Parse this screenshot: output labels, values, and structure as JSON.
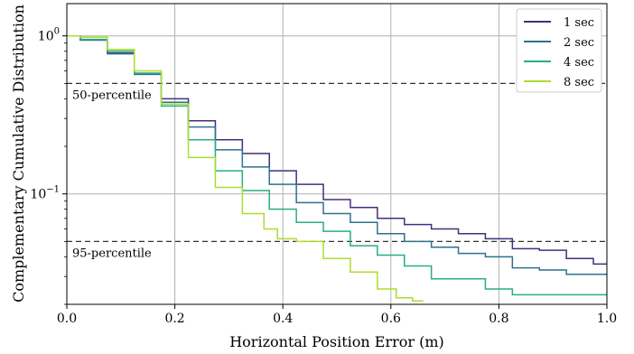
{
  "chart_data": {
    "type": "line",
    "title": "",
    "xlabel": "Horizontal Position Error (m)",
    "ylabel": "Complementary Cumulative Distribution",
    "xlim": [
      0.0,
      1.0
    ],
    "ylim": [
      0.02,
      1.6
    ],
    "y_scale": "log",
    "grid": true,
    "legend_position": "top-right",
    "x_ticks": [
      0.0,
      0.2,
      0.4,
      0.6,
      0.8,
      1.0
    ],
    "x_tick_labels": [
      "0.0",
      "0.2",
      "0.4",
      "0.6",
      "0.8",
      "1.0"
    ],
    "y_ticks": [
      1.0,
      0.1
    ],
    "y_tick_labels": [
      {
        "base": "10",
        "exp": "0"
      },
      {
        "base": "10",
        "exp": "−1"
      }
    ],
    "reference_lines": [
      {
        "y": 0.5,
        "label": "50-percentile"
      },
      {
        "y": 0.05,
        "label": "95-percentile"
      }
    ],
    "series": [
      {
        "name": "1 sec",
        "color": "#472d7b",
        "x": [
          0.0,
          0.05,
          0.1,
          0.15,
          0.2,
          0.25,
          0.3,
          0.35,
          0.4,
          0.45,
          0.5,
          0.55,
          0.6,
          0.65,
          0.7,
          0.75,
          0.8,
          0.85,
          0.9,
          0.95,
          1.0
        ],
        "y": [
          1.0,
          0.94,
          0.78,
          0.58,
          0.4,
          0.29,
          0.22,
          0.18,
          0.14,
          0.115,
          0.092,
          0.082,
          0.07,
          0.064,
          0.06,
          0.056,
          0.052,
          0.045,
          0.044,
          0.039,
          0.036
        ]
      },
      {
        "name": "2 sec",
        "color": "#2c728e",
        "x": [
          0.0,
          0.05,
          0.1,
          0.15,
          0.2,
          0.25,
          0.3,
          0.35,
          0.4,
          0.45,
          0.5,
          0.55,
          0.6,
          0.65,
          0.7,
          0.75,
          0.8,
          0.85,
          0.9,
          0.95,
          1.0
        ],
        "y": [
          1.0,
          0.94,
          0.77,
          0.57,
          0.38,
          0.265,
          0.19,
          0.148,
          0.115,
          0.088,
          0.075,
          0.066,
          0.056,
          0.05,
          0.046,
          0.042,
          0.04,
          0.034,
          0.033,
          0.031,
          0.031
        ]
      },
      {
        "name": "4 sec",
        "color": "#28ae80",
        "x": [
          0.0,
          0.05,
          0.1,
          0.15,
          0.2,
          0.25,
          0.3,
          0.35,
          0.4,
          0.45,
          0.5,
          0.55,
          0.6,
          0.65,
          0.7,
          0.75,
          0.8,
          0.85,
          0.9,
          0.95,
          1.0
        ],
        "y": [
          1.0,
          0.95,
          0.8,
          0.58,
          0.36,
          0.22,
          0.14,
          0.105,
          0.08,
          0.066,
          0.058,
          0.047,
          0.041,
          0.035,
          0.029,
          0.029,
          0.025,
          0.023,
          0.023,
          0.023,
          0.023
        ]
      },
      {
        "name": "8 sec",
        "color": "#addc30",
        "x": [
          0.0,
          0.05,
          0.1,
          0.15,
          0.2,
          0.25,
          0.3,
          0.35,
          0.38,
          0.4,
          0.45,
          0.5,
          0.55,
          0.6,
          0.62,
          0.66
        ],
        "y": [
          1.0,
          0.98,
          0.82,
          0.6,
          0.37,
          0.17,
          0.11,
          0.075,
          0.06,
          0.052,
          0.05,
          0.039,
          0.032,
          0.025,
          0.022,
          0.021
        ]
      }
    ]
  }
}
